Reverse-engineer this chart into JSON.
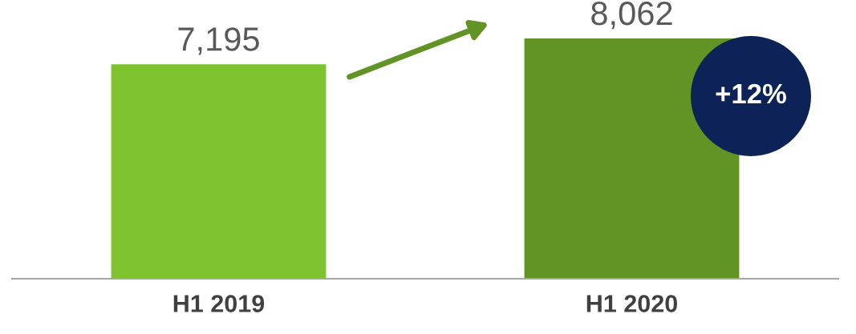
{
  "chart_data": {
    "type": "bar",
    "categories": [
      "H1 2019",
      "H1 2020"
    ],
    "values": [
      7195,
      8062
    ],
    "colors": [
      "#7fc42e",
      "#629425"
    ],
    "value_labels": [
      "7,195",
      "8,062"
    ],
    "grid": false,
    "legend": false,
    "annotations": [
      "+12%"
    ]
  }
}
